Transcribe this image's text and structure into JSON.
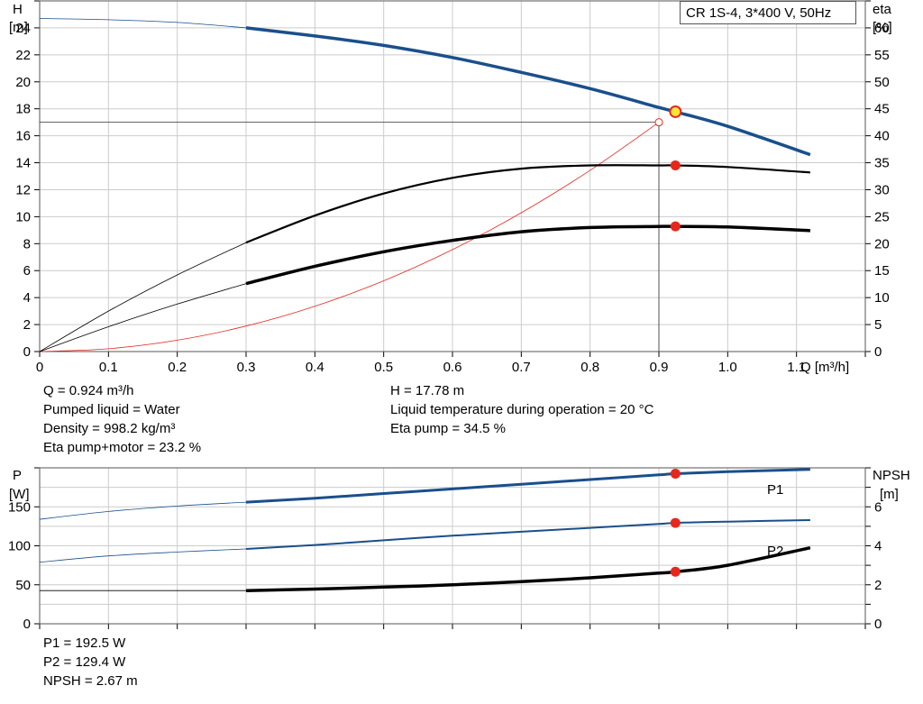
{
  "title": "CR 1S-4, 3*400 V, 50Hz",
  "colors": {
    "blue": "#1a4f8b",
    "black": "#000000",
    "red": "#e8261c",
    "op_yellow": "#f7e43a",
    "grid": "#cccccc"
  },
  "top_chart": {
    "left_axis": {
      "label1": "H",
      "label2": "[m]"
    },
    "right_axis": {
      "label1": "eta",
      "label2": "[%]"
    },
    "x_label": "Q [m³/h]",
    "x_ticks": [
      "0",
      "0.1",
      "0.2",
      "0.3",
      "0.4",
      "0.5",
      "0.6",
      "0.7",
      "0.8",
      "0.9",
      "1.0",
      "1.1"
    ],
    "y_ticks": [
      "0",
      "2",
      "4",
      "6",
      "8",
      "10",
      "12",
      "14",
      "16",
      "18",
      "20",
      "22",
      "24"
    ],
    "y2_ticks": [
      "0",
      "5",
      "10",
      "15",
      "20",
      "25",
      "30",
      "35",
      "40",
      "45",
      "50",
      "55",
      "60"
    ]
  },
  "bottom_chart": {
    "left_axis": {
      "label1": "P",
      "label2": "[W]"
    },
    "right_axis": {
      "label1": "NPSH",
      "label2": "[m]"
    },
    "y_ticks": [
      "0",
      "50",
      "100",
      "150"
    ],
    "y2_ticks": [
      "0",
      "2",
      "4",
      "6"
    ],
    "p1_label": "P1",
    "p2_label": "P2"
  },
  "operating_point": {
    "q": "Q = 0.924 m³/h",
    "h": "H = 17.78 m",
    "liquid": "Pumped liquid = Water",
    "temperature": "Liquid temperature during operation = 20 °C",
    "density": "Density = 998.2 kg/m³",
    "eta_pump": "Eta pump = 34.5 %",
    "eta_pump_motor": "Eta pump+motor = 23.2 %",
    "p1": "P1 = 192.5 W",
    "p2": "P2 = 129.4 W",
    "npsh": "NPSH = 2.67 m"
  },
  "chart_data": [
    {
      "type": "line",
      "title": "CR 1S-4, 3*400 V, 50Hz",
      "xlabel": "Q [m³/h]",
      "ylabel": "H [m]",
      "y2label": "eta [%]",
      "xlim": [
        0,
        1.2
      ],
      "ylim": [
        0,
        26
      ],
      "y2lim": [
        0,
        65
      ],
      "grid": true,
      "series": [
        {
          "name": "H",
          "axis": "left",
          "x": [
            0,
            0.1,
            0.2,
            0.3,
            0.4,
            0.5,
            0.6,
            0.7,
            0.8,
            0.9,
            0.924,
            1.0,
            1.12
          ],
          "values": [
            24.7,
            24.6,
            24.4,
            24.0,
            23.4,
            22.7,
            21.8,
            20.7,
            19.5,
            18.1,
            17.78,
            16.7,
            14.6
          ]
        },
        {
          "name": "eta pump",
          "axis": "right",
          "x": [
            0,
            0.1,
            0.2,
            0.3,
            0.4,
            0.5,
            0.6,
            0.7,
            0.8,
            0.9,
            0.924,
            1.0,
            1.12
          ],
          "values": [
            0,
            7.5,
            14.2,
            20.2,
            25.2,
            29.3,
            32.2,
            33.9,
            34.5,
            34.5,
            34.5,
            34.2,
            33.2
          ]
        },
        {
          "name": "eta pump+motor",
          "axis": "right",
          "x": [
            0,
            0.1,
            0.2,
            0.3,
            0.4,
            0.5,
            0.6,
            0.7,
            0.8,
            0.9,
            0.924,
            1.0,
            1.12
          ],
          "values": [
            0,
            4.6,
            8.8,
            12.6,
            15.8,
            18.5,
            20.6,
            22.2,
            23.0,
            23.2,
            23.2,
            23.1,
            22.4
          ]
        },
        {
          "name": "system curve",
          "axis": "left",
          "x": [
            0,
            0.1,
            0.2,
            0.3,
            0.4,
            0.5,
            0.6,
            0.7,
            0.8,
            0.9
          ],
          "values": [
            0,
            0.21,
            0.84,
            1.89,
            3.36,
            5.25,
            7.56,
            10.29,
            13.44,
            17.0
          ]
        }
      ],
      "operating_point": {
        "x": 0.924,
        "y": 17.78
      }
    },
    {
      "type": "line",
      "xlabel": "Q [m³/h]",
      "ylabel": "P [W]",
      "y2label": "NPSH [m]",
      "xlim": [
        0,
        1.2
      ],
      "ylim": [
        0,
        200
      ],
      "y2lim": [
        0,
        8
      ],
      "grid": true,
      "series": [
        {
          "name": "P1",
          "axis": "left",
          "x": [
            0,
            0.1,
            0.2,
            0.3,
            0.4,
            0.5,
            0.6,
            0.7,
            0.8,
            0.9,
            0.924,
            1.0,
            1.12
          ],
          "values": [
            134,
            144,
            151,
            156,
            161,
            167,
            173,
            179,
            185,
            191,
            192.5,
            195,
            198
          ]
        },
        {
          "name": "P2",
          "axis": "left",
          "x": [
            0,
            0.1,
            0.2,
            0.3,
            0.4,
            0.5,
            0.6,
            0.7,
            0.8,
            0.9,
            0.924,
            1.0,
            1.12
          ],
          "values": [
            79,
            87,
            92,
            96,
            101,
            107,
            113,
            118,
            123,
            128,
            129.4,
            131,
            133
          ]
        },
        {
          "name": "NPSH",
          "axis": "right",
          "x": [
            0,
            0.3,
            0.4,
            0.5,
            0.6,
            0.7,
            0.8,
            0.9,
            0.924,
            1.0,
            1.12
          ],
          "values": [
            1.7,
            1.7,
            1.78,
            1.88,
            2.0,
            2.16,
            2.36,
            2.6,
            2.67,
            3.0,
            3.9
          ]
        }
      ],
      "operating_point": {
        "x": 0.924
      }
    }
  ]
}
